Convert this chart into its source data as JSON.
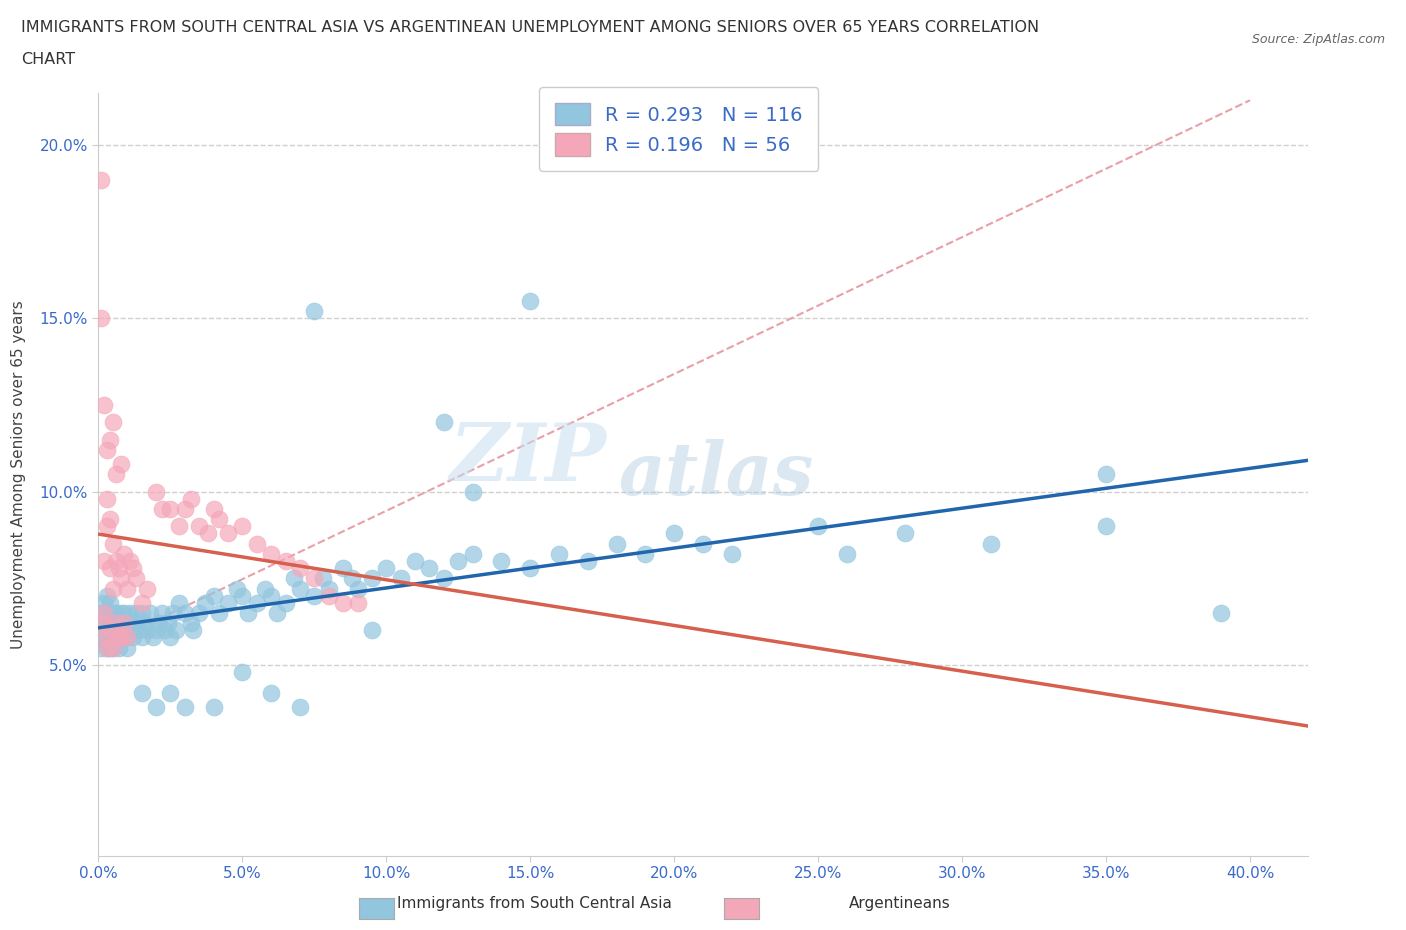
{
  "title_line1": "IMMIGRANTS FROM SOUTH CENTRAL ASIA VS ARGENTINEAN UNEMPLOYMENT AMONG SENIORS OVER 65 YEARS CORRELATION",
  "title_line2": "CHART",
  "source": "Source: ZipAtlas.com",
  "ylabel": "Unemployment Among Seniors over 65 years",
  "legend_label1": "Immigrants from South Central Asia",
  "legend_label2": "Argentineans",
  "R1": 0.293,
  "N1": 116,
  "R2": 0.196,
  "N2": 56,
  "color1": "#92c5de",
  "color2": "#f4a7b9",
  "trendline1_color": "#2166ac",
  "trendline2_color": "#d6604d",
  "dashed_line_color": "#e8a0a8",
  "xlim": [
    0.0,
    0.42
  ],
  "ylim": [
    -0.005,
    0.215
  ],
  "xticks": [
    0.0,
    0.05,
    0.1,
    0.15,
    0.2,
    0.25,
    0.3,
    0.35,
    0.4
  ],
  "yticks": [
    0.05,
    0.1,
    0.15,
    0.2
  ],
  "background_color": "#ffffff",
  "watermark_zip": "ZIP",
  "watermark_atlas": "atlas",
  "blue_scatter_x": [
    0.001,
    0.001,
    0.001,
    0.001,
    0.002,
    0.002,
    0.002,
    0.003,
    0.003,
    0.003,
    0.003,
    0.004,
    0.004,
    0.004,
    0.004,
    0.005,
    0.005,
    0.005,
    0.005,
    0.006,
    0.006,
    0.006,
    0.007,
    0.007,
    0.007,
    0.008,
    0.008,
    0.008,
    0.009,
    0.009,
    0.01,
    0.01,
    0.01,
    0.011,
    0.011,
    0.012,
    0.012,
    0.013,
    0.013,
    0.014,
    0.015,
    0.015,
    0.016,
    0.017,
    0.018,
    0.019,
    0.02,
    0.021,
    0.022,
    0.023,
    0.024,
    0.025,
    0.026,
    0.027,
    0.028,
    0.03,
    0.032,
    0.033,
    0.035,
    0.037,
    0.04,
    0.042,
    0.045,
    0.048,
    0.05,
    0.052,
    0.055,
    0.058,
    0.06,
    0.062,
    0.065,
    0.068,
    0.07,
    0.075,
    0.078,
    0.08,
    0.085,
    0.088,
    0.09,
    0.095,
    0.1,
    0.105,
    0.11,
    0.115,
    0.12,
    0.125,
    0.13,
    0.14,
    0.15,
    0.16,
    0.17,
    0.18,
    0.19,
    0.2,
    0.21,
    0.22,
    0.25,
    0.28,
    0.31,
    0.35,
    0.15,
    0.13,
    0.26,
    0.39,
    0.35,
    0.075,
    0.12,
    0.095,
    0.07,
    0.06,
    0.05,
    0.04,
    0.03,
    0.025,
    0.02,
    0.015
  ],
  "blue_scatter_y": [
    0.062,
    0.058,
    0.065,
    0.055,
    0.063,
    0.068,
    0.058,
    0.07,
    0.065,
    0.058,
    0.055,
    0.062,
    0.068,
    0.06,
    0.055,
    0.065,
    0.06,
    0.055,
    0.058,
    0.062,
    0.065,
    0.058,
    0.06,
    0.055,
    0.062,
    0.06,
    0.065,
    0.058,
    0.062,
    0.065,
    0.06,
    0.058,
    0.055,
    0.062,
    0.065,
    0.06,
    0.058,
    0.062,
    0.065,
    0.06,
    0.065,
    0.058,
    0.062,
    0.06,
    0.065,
    0.058,
    0.06,
    0.062,
    0.065,
    0.06,
    0.062,
    0.058,
    0.065,
    0.06,
    0.068,
    0.065,
    0.062,
    0.06,
    0.065,
    0.068,
    0.07,
    0.065,
    0.068,
    0.072,
    0.07,
    0.065,
    0.068,
    0.072,
    0.07,
    0.065,
    0.068,
    0.075,
    0.072,
    0.07,
    0.075,
    0.072,
    0.078,
    0.075,
    0.072,
    0.075,
    0.078,
    0.075,
    0.08,
    0.078,
    0.075,
    0.08,
    0.082,
    0.08,
    0.078,
    0.082,
    0.08,
    0.085,
    0.082,
    0.088,
    0.085,
    0.082,
    0.09,
    0.088,
    0.085,
    0.09,
    0.155,
    0.1,
    0.082,
    0.065,
    0.105,
    0.152,
    0.12,
    0.06,
    0.038,
    0.042,
    0.048,
    0.038,
    0.038,
    0.042,
    0.038,
    0.042
  ],
  "pink_scatter_x": [
    0.001,
    0.001,
    0.001,
    0.002,
    0.002,
    0.002,
    0.003,
    0.003,
    0.003,
    0.004,
    0.004,
    0.004,
    0.005,
    0.005,
    0.005,
    0.006,
    0.006,
    0.007,
    0.007,
    0.008,
    0.008,
    0.009,
    0.009,
    0.01,
    0.01,
    0.011,
    0.012,
    0.013,
    0.015,
    0.017,
    0.02,
    0.022,
    0.025,
    0.028,
    0.03,
    0.032,
    0.035,
    0.038,
    0.04,
    0.042,
    0.045,
    0.05,
    0.055,
    0.06,
    0.065,
    0.07,
    0.075,
    0.08,
    0.085,
    0.09,
    0.002,
    0.003,
    0.004,
    0.005,
    0.006,
    0.008
  ],
  "pink_scatter_y": [
    0.062,
    0.19,
    0.15,
    0.08,
    0.065,
    0.058,
    0.09,
    0.098,
    0.055,
    0.092,
    0.078,
    0.06,
    0.085,
    0.072,
    0.055,
    0.08,
    0.062,
    0.078,
    0.058,
    0.075,
    0.058,
    0.082,
    0.062,
    0.072,
    0.058,
    0.08,
    0.078,
    0.075,
    0.068,
    0.072,
    0.1,
    0.095,
    0.095,
    0.09,
    0.095,
    0.098,
    0.09,
    0.088,
    0.095,
    0.092,
    0.088,
    0.09,
    0.085,
    0.082,
    0.08,
    0.078,
    0.075,
    0.07,
    0.068,
    0.068,
    0.125,
    0.112,
    0.115,
    0.12,
    0.105,
    0.108
  ]
}
